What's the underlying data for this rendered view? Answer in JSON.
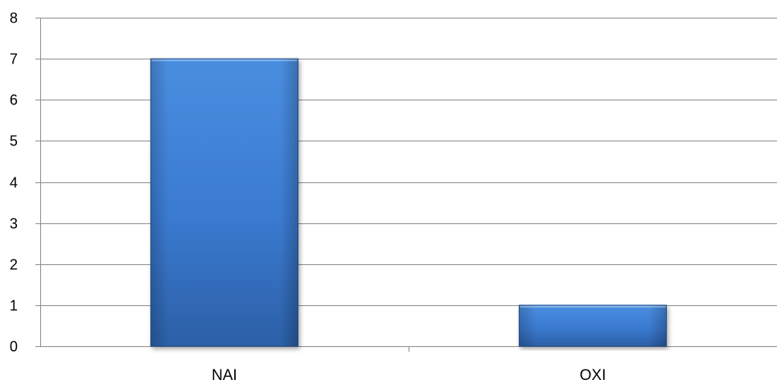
{
  "chart_data": {
    "type": "bar",
    "categories": [
      "NAI",
      "OXI"
    ],
    "values": [
      7,
      1
    ],
    "ylim": [
      0,
      8
    ],
    "yticks": [
      0,
      1,
      2,
      3,
      4,
      5,
      6,
      7,
      8
    ],
    "grid": true,
    "legend": "none",
    "colors": {
      "bar_light": "#4a8ee0",
      "bar_mid": "#3a7ad0",
      "bar_dark": "#2c5fa6",
      "bar_edge": "#2a578f",
      "gridline": "#8c8c8c",
      "axis": "#8c8c8c"
    }
  }
}
